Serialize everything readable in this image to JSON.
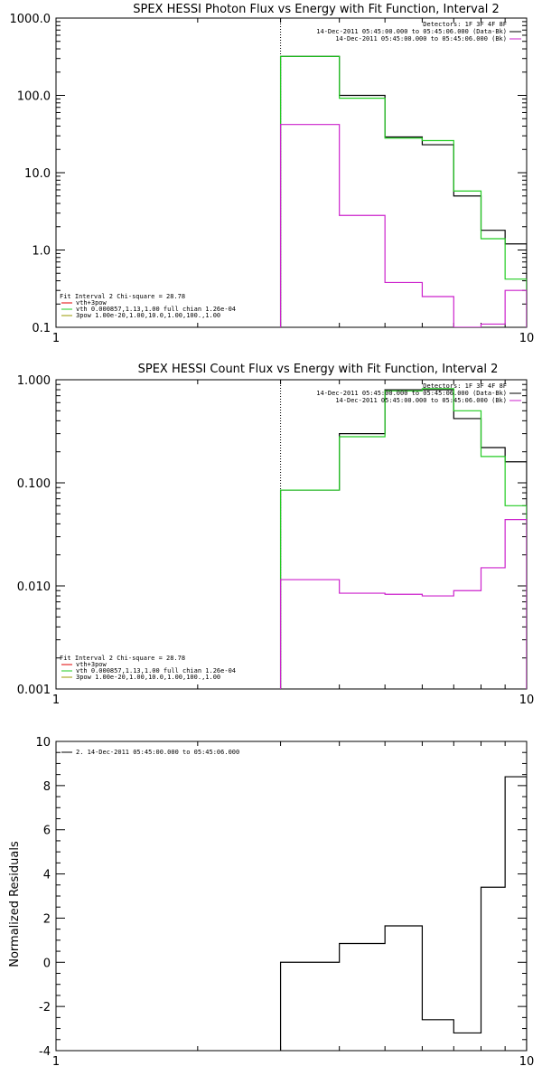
{
  "colors": {
    "black": "#000000",
    "red": "#e00000",
    "green": "#22cc22",
    "magenta": "#cc22cc",
    "olive": "#999900"
  },
  "chart_data": [
    {
      "type": "line",
      "title": "SPEX HESSI Photon Flux vs Energy with Fit Function, Interval 2",
      "xscale": "log",
      "yscale": "log",
      "xlim": [
        1,
        10
      ],
      "ylim": [
        0.1,
        1000
      ],
      "xticks": [
        "1",
        "10"
      ],
      "yticks": [
        "0.1",
        "1.0",
        "10.0",
        "100.0",
        "1000.0"
      ],
      "vline": 3.0,
      "edges": [
        3,
        4,
        5,
        6,
        7,
        8,
        9,
        10
      ],
      "series": [
        {
          "name": "14-Dec-2011 05:45:00.000 to 05:45:06.000 (Data-Bk)",
          "color": "black",
          "values": [
            320,
            100,
            29,
            23,
            5,
            1.8,
            1.2
          ]
        },
        {
          "name": "vth+3pow",
          "color": "green",
          "values": [
            320,
            92,
            28,
            26,
            5.8,
            1.4,
            0.42
          ]
        },
        {
          "name": "14-Dec-2011 05:45:00.000 to 05:45:06.000 (Bk)",
          "color": "magenta",
          "values": [
            42,
            2.8,
            0.38,
            0.25,
            0.1,
            0.11,
            0.3
          ]
        }
      ],
      "legend_right": [
        "Detectors: 1F 3F 4F 8F",
        "14-Dec-2011 05:45:00.000 to 05:45:06.000 (Data-Bk)",
        "14-Dec-2011 05:45:00.000 to 05:45:06.000 (Bk)"
      ],
      "legend_left": [
        "Fit Interval 2   Chi-square = 28.78",
        "vth+3pow",
        "vth 0.000857,1.13,1.00  full chian 1.26e-04",
        "3pow 1.00e-20,1.00,10.0,1.00,100.,1.00"
      ]
    },
    {
      "type": "line",
      "title": "SPEX HESSI Count Flux vs Energy with Fit Function, Interval 2",
      "xscale": "log",
      "yscale": "log",
      "xlim": [
        1,
        10
      ],
      "ylim": [
        0.001,
        1
      ],
      "xticks": [
        "1",
        "10"
      ],
      "yticks": [
        "0.001",
        "0.010",
        "0.100",
        "1.000"
      ],
      "vline": 3.0,
      "edges": [
        3,
        4,
        5,
        6,
        7,
        8,
        9,
        10
      ],
      "series": [
        {
          "name": "14-Dec-2011 05:45:00.000 to 05:45:06.000 (Data-Bk)",
          "color": "black",
          "values": [
            0.085,
            0.3,
            0.8,
            0.8,
            0.42,
            0.22,
            0.16
          ]
        },
        {
          "name": "vth+3pow",
          "color": "green",
          "values": [
            0.085,
            0.28,
            0.78,
            0.82,
            0.5,
            0.18,
            0.06
          ]
        },
        {
          "name": "14-Dec-2011 05:45:00.000 to 05:45:06.000 (Bk)",
          "color": "magenta",
          "values": [
            0.0115,
            0.0085,
            0.0083,
            0.008,
            0.009,
            0.015,
            0.044
          ]
        }
      ],
      "legend_right": [
        "Detectors: 1F 3F 4F 8F",
        "14-Dec-2011 05:45:00.000 to 05:45:06.000 (Data-Bk)",
        "14-Dec-2011 05:45:00.000 to 05:45:06.000 (Bk)"
      ],
      "legend_left": [
        "Fit Interval 2   Chi-square = 28.78",
        "vth+3pow",
        "vth 0.000857,1.13,1.00  full chian 1.26e-04",
        "3pow 1.00e-20,1.00,10.0,1.00,100.,1.00"
      ]
    },
    {
      "type": "line",
      "title": "",
      "xscale": "log",
      "yscale": "linear",
      "xlim": [
        1,
        10
      ],
      "ylim": [
        -4,
        10
      ],
      "xticks": [
        "1",
        "10"
      ],
      "yticks": [
        "-4",
        "-2",
        "0",
        "2",
        "4",
        "6",
        "8",
        "10"
      ],
      "ylabel": "Normalized Residuals",
      "edges": [
        3,
        4,
        5,
        6,
        7,
        8,
        9,
        10
      ],
      "series": [
        {
          "name": "2. 14-Dec-2011 05:45:00.000 to 05:45:06.000",
          "color": "black",
          "values": [
            0.0,
            0.85,
            1.65,
            -2.6,
            -3.2,
            3.4,
            8.4
          ]
        }
      ],
      "legend_left": [
        "2. 14-Dec-2011 05:45:00.000 to 05:45:06.000"
      ]
    }
  ]
}
